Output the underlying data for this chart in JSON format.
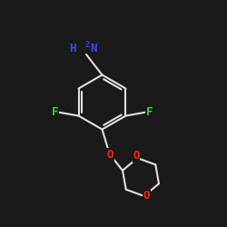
{
  "bg_color": "#1a1a1a",
  "bond_color": "#e0e0e0",
  "bond_width": 1.5,
  "atom_colors": {
    "N": "#4444ff",
    "F": "#44cc44",
    "O": "#ff2200",
    "C": "#e0e0e0"
  },
  "font_size_label": 9,
  "font_size_sub": 6
}
